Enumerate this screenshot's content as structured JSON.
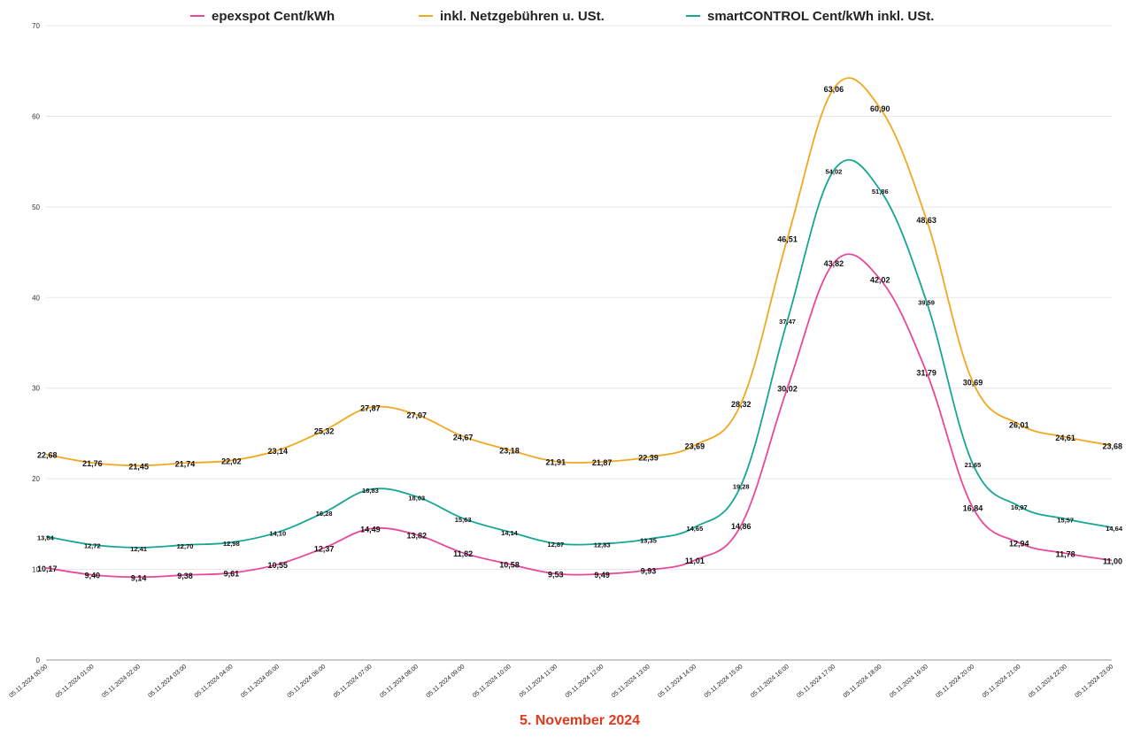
{
  "chart_data": {
    "type": "line",
    "xlabel": "5. November 2024",
    "xlabel_color": "#e03a1e",
    "ylim": [
      0,
      70
    ],
    "yticks": [
      0,
      10,
      20,
      30,
      40,
      50,
      60,
      70
    ],
    "grid": true,
    "legend_position": "top",
    "categories": [
      "05.11.2024 00:00",
      "05.11.2024 01:00",
      "05.11.2024 02:00",
      "05.11.2024 03:00",
      "05.11.2024 04:00",
      "05.11.2024 05:00",
      "05.11.2024 06:00",
      "05.11.2024 07:00",
      "05.11.2024 08:00",
      "05.11.2024 09:00",
      "05.11.2024 10:00",
      "05.11.2024 11:00",
      "05.11.2024 12:00",
      "05.11.2024 13:00",
      "05.11.2024 14:00",
      "05.11.2024 15:00",
      "05.11.2024 16:00",
      "05.11.2024 17:00",
      "05.11.2024 18:00",
      "05.11.2024 19:00",
      "05.11.2024 20:00",
      "05.11.2024 21:00",
      "05.11.2024 22:00",
      "05.11.2024 23:00"
    ],
    "series": [
      {
        "name": "epexspot Cent/kWh",
        "color": "#e8479a",
        "values": [
          10.17,
          9.4,
          9.14,
          9.38,
          9.61,
          10.55,
          12.37,
          14.49,
          13.82,
          11.82,
          10.58,
          9.53,
          9.49,
          9.93,
          11.01,
          14.86,
          30.02,
          43.82,
          42.02,
          31.79,
          16.84,
          12.94,
          11.78,
          11.0
        ],
        "labels": [
          "10,17",
          "9,40",
          "9,14",
          "9,38",
          "9,61",
          "10,55",
          "12,37",
          "14,49",
          "13,82",
          "11,82",
          "10,58",
          "9,53",
          "9,49",
          "9,93",
          "11,01",
          "14,86",
          "30,02",
          "43,82",
          "42,02",
          "31,79",
          "16,84",
          "12,94",
          "11,78",
          "11,00"
        ]
      },
      {
        "name": "inkl. Netzgebühren u. USt.",
        "color": "#f0a81e",
        "values": [
          22.68,
          21.76,
          21.45,
          21.74,
          22.02,
          23.14,
          25.32,
          27.87,
          27.07,
          24.67,
          23.18,
          21.91,
          21.87,
          22.39,
          23.69,
          28.32,
          46.51,
          63.06,
          60.9,
          48.63,
          30.69,
          26.01,
          24.61,
          23.68
        ],
        "labels": [
          "22,68",
          "21,76",
          "21,45",
          "21,74",
          "22,02",
          "23,14",
          "25,32",
          "27,87",
          "27,07",
          "24,67",
          "23,18",
          "21,91",
          "21,87",
          "22,39",
          "23,69",
          "28,32",
          "46,51",
          "63,06",
          "60,90",
          "48,63",
          "30,69",
          "26,01",
          "24,61",
          "23,68"
        ]
      },
      {
        "name": "smartCONTROL Cent/kWh inkl. USt.",
        "color": "#17a596",
        "values": [
          13.64,
          12.72,
          12.41,
          12.7,
          12.98,
          14.1,
          16.28,
          18.83,
          18.03,
          15.63,
          14.14,
          12.87,
          12.83,
          13.35,
          14.65,
          19.28,
          37.47,
          54.02,
          51.86,
          39.59,
          21.65,
          16.97,
          15.57,
          14.64
        ],
        "labels": [
          "13,64",
          "12,72",
          "12,41",
          "12,70",
          "12,98",
          "14,10",
          "16,28",
          "18,83",
          "18,03",
          "15,63",
          "14,14",
          "12,87",
          "12,83",
          "13,35",
          "14,65",
          "19,28",
          "37,47",
          "54,02",
          "51,86",
          "39,59",
          "21,65",
          "16,97",
          "15,57",
          "14,64"
        ]
      }
    ]
  }
}
